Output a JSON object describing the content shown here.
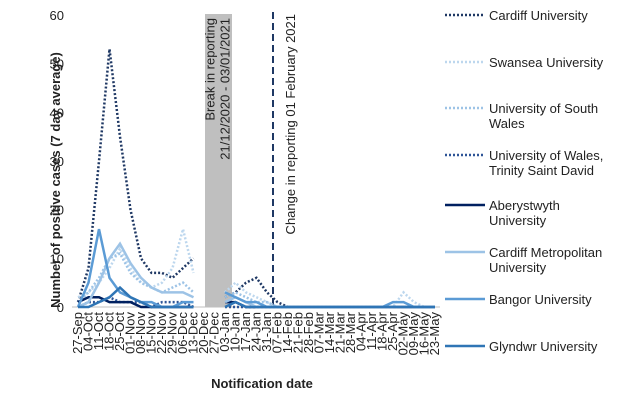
{
  "chart_data": {
    "type": "line",
    "y_label": "Number of positive cases (7 day average)",
    "x_label": "Notification date",
    "categories": [
      "27-Sep",
      "04-Oct",
      "11-Oct",
      "18-Oct",
      "25-Oct",
      "01-Nov",
      "08-Nov",
      "15-Nov",
      "22-Nov",
      "29-Nov",
      "06-Dec",
      "13-Dec",
      "20-Dec",
      "27-Dec",
      "03-Jan",
      "10-Jan",
      "17-Jan",
      "24-Jan",
      "31-Jan",
      "07-Feb",
      "14-Feb",
      "21-Feb",
      "28-Feb",
      "07-Mar",
      "14-Mar",
      "21-Mar",
      "28-Mar",
      "04-Apr",
      "11-Apr",
      "18-Apr",
      "25-Apr",
      "02-May",
      "09-May",
      "16-May",
      "23-May"
    ],
    "ylim": [
      0,
      60
    ],
    "yticks": [
      0,
      10,
      20,
      30,
      40,
      50,
      60
    ],
    "annotations": [
      {
        "lines": [
          "Break in reporting",
          "21/12/2020 - 03/01/2021"
        ]
      },
      {
        "lines": [
          "Change in reporting 01 February 2021"
        ]
      }
    ],
    "series": [
      {
        "name": "Cardiff University",
        "color": "#1f3864",
        "style": "dotted",
        "values": [
          1,
          8,
          30,
          53,
          35,
          20,
          10,
          7,
          7,
          6,
          8,
          10,
          null,
          null,
          2,
          3,
          5,
          6,
          3,
          1,
          0,
          0,
          0,
          0,
          0,
          0,
          0,
          0,
          0,
          0,
          0,
          0,
          0,
          0,
          0
        ]
      },
      {
        "name": "Swansea University",
        "color": "#bdd7ee",
        "style": "dotted",
        "values": [
          2,
          3,
          5,
          8,
          12,
          8,
          5,
          4,
          5,
          8,
          16,
          7,
          null,
          null,
          3,
          5,
          3,
          2,
          1,
          0,
          0,
          0,
          0,
          0,
          0,
          0,
          0,
          0,
          0,
          0,
          0,
          3,
          1,
          0,
          0
        ]
      },
      {
        "name": "University of South Wales",
        "color": "#9dc3e6",
        "style": "dotted",
        "values": [
          1,
          3,
          6,
          10,
          11,
          7,
          5,
          4,
          3,
          4,
          5,
          3,
          null,
          null,
          2,
          3,
          2,
          1,
          1,
          0,
          0,
          0,
          0,
          0,
          0,
          0,
          0,
          0,
          0,
          0,
          0,
          0,
          0,
          0,
          0
        ]
      },
      {
        "name": "University of Wales, Trinity Saint David",
        "color": "#2e5597",
        "style": "dotted",
        "values": [
          0,
          1,
          1,
          2,
          1,
          1,
          1,
          0,
          1,
          1,
          1,
          0,
          null,
          null,
          0,
          0,
          0,
          0,
          0,
          0,
          0,
          0,
          0,
          0,
          0,
          0,
          0,
          0,
          0,
          0,
          0,
          0,
          0,
          0,
          0
        ]
      },
      {
        "name": "Aberystwyth University",
        "color": "#002060",
        "style": "solid",
        "values": [
          1,
          2,
          2,
          1,
          1,
          1,
          0,
          0,
          0,
          0,
          0,
          0,
          null,
          null,
          1,
          1,
          0,
          0,
          0,
          0,
          0,
          0,
          0,
          0,
          0,
          0,
          0,
          0,
          0,
          0,
          0,
          0,
          0,
          0,
          0
        ]
      },
      {
        "name": "Cardiff Metropolitan University",
        "color": "#9dc3e6",
        "style": "solid",
        "values": [
          0,
          1,
          5,
          10,
          13,
          9,
          6,
          4,
          3,
          3,
          3,
          2,
          null,
          null,
          1,
          2,
          1,
          0,
          0,
          0,
          0,
          0,
          0,
          0,
          0,
          0,
          0,
          0,
          0,
          0,
          0,
          0,
          0,
          0,
          0
        ]
      },
      {
        "name": "Bangor University",
        "color": "#5b9bd5",
        "style": "solid",
        "values": [
          0,
          5,
          16,
          6,
          3,
          2,
          1,
          1,
          0,
          0,
          1,
          1,
          null,
          null,
          3,
          2,
          1,
          1,
          0,
          0,
          0,
          0,
          0,
          0,
          0,
          0,
          0,
          0,
          0,
          0,
          1,
          1,
          0,
          0,
          0
        ]
      },
      {
        "name": "Glyndwr University",
        "color": "#2f75b5",
        "style": "solid",
        "values": [
          0,
          0,
          1,
          2,
          4,
          2,
          1,
          0,
          0,
          0,
          0,
          0,
          null,
          null,
          0,
          1,
          0,
          0,
          0,
          0,
          0,
          0,
          0,
          0,
          0,
          0,
          0,
          0,
          0,
          0,
          0,
          0,
          0,
          0,
          0
        ]
      }
    ]
  }
}
